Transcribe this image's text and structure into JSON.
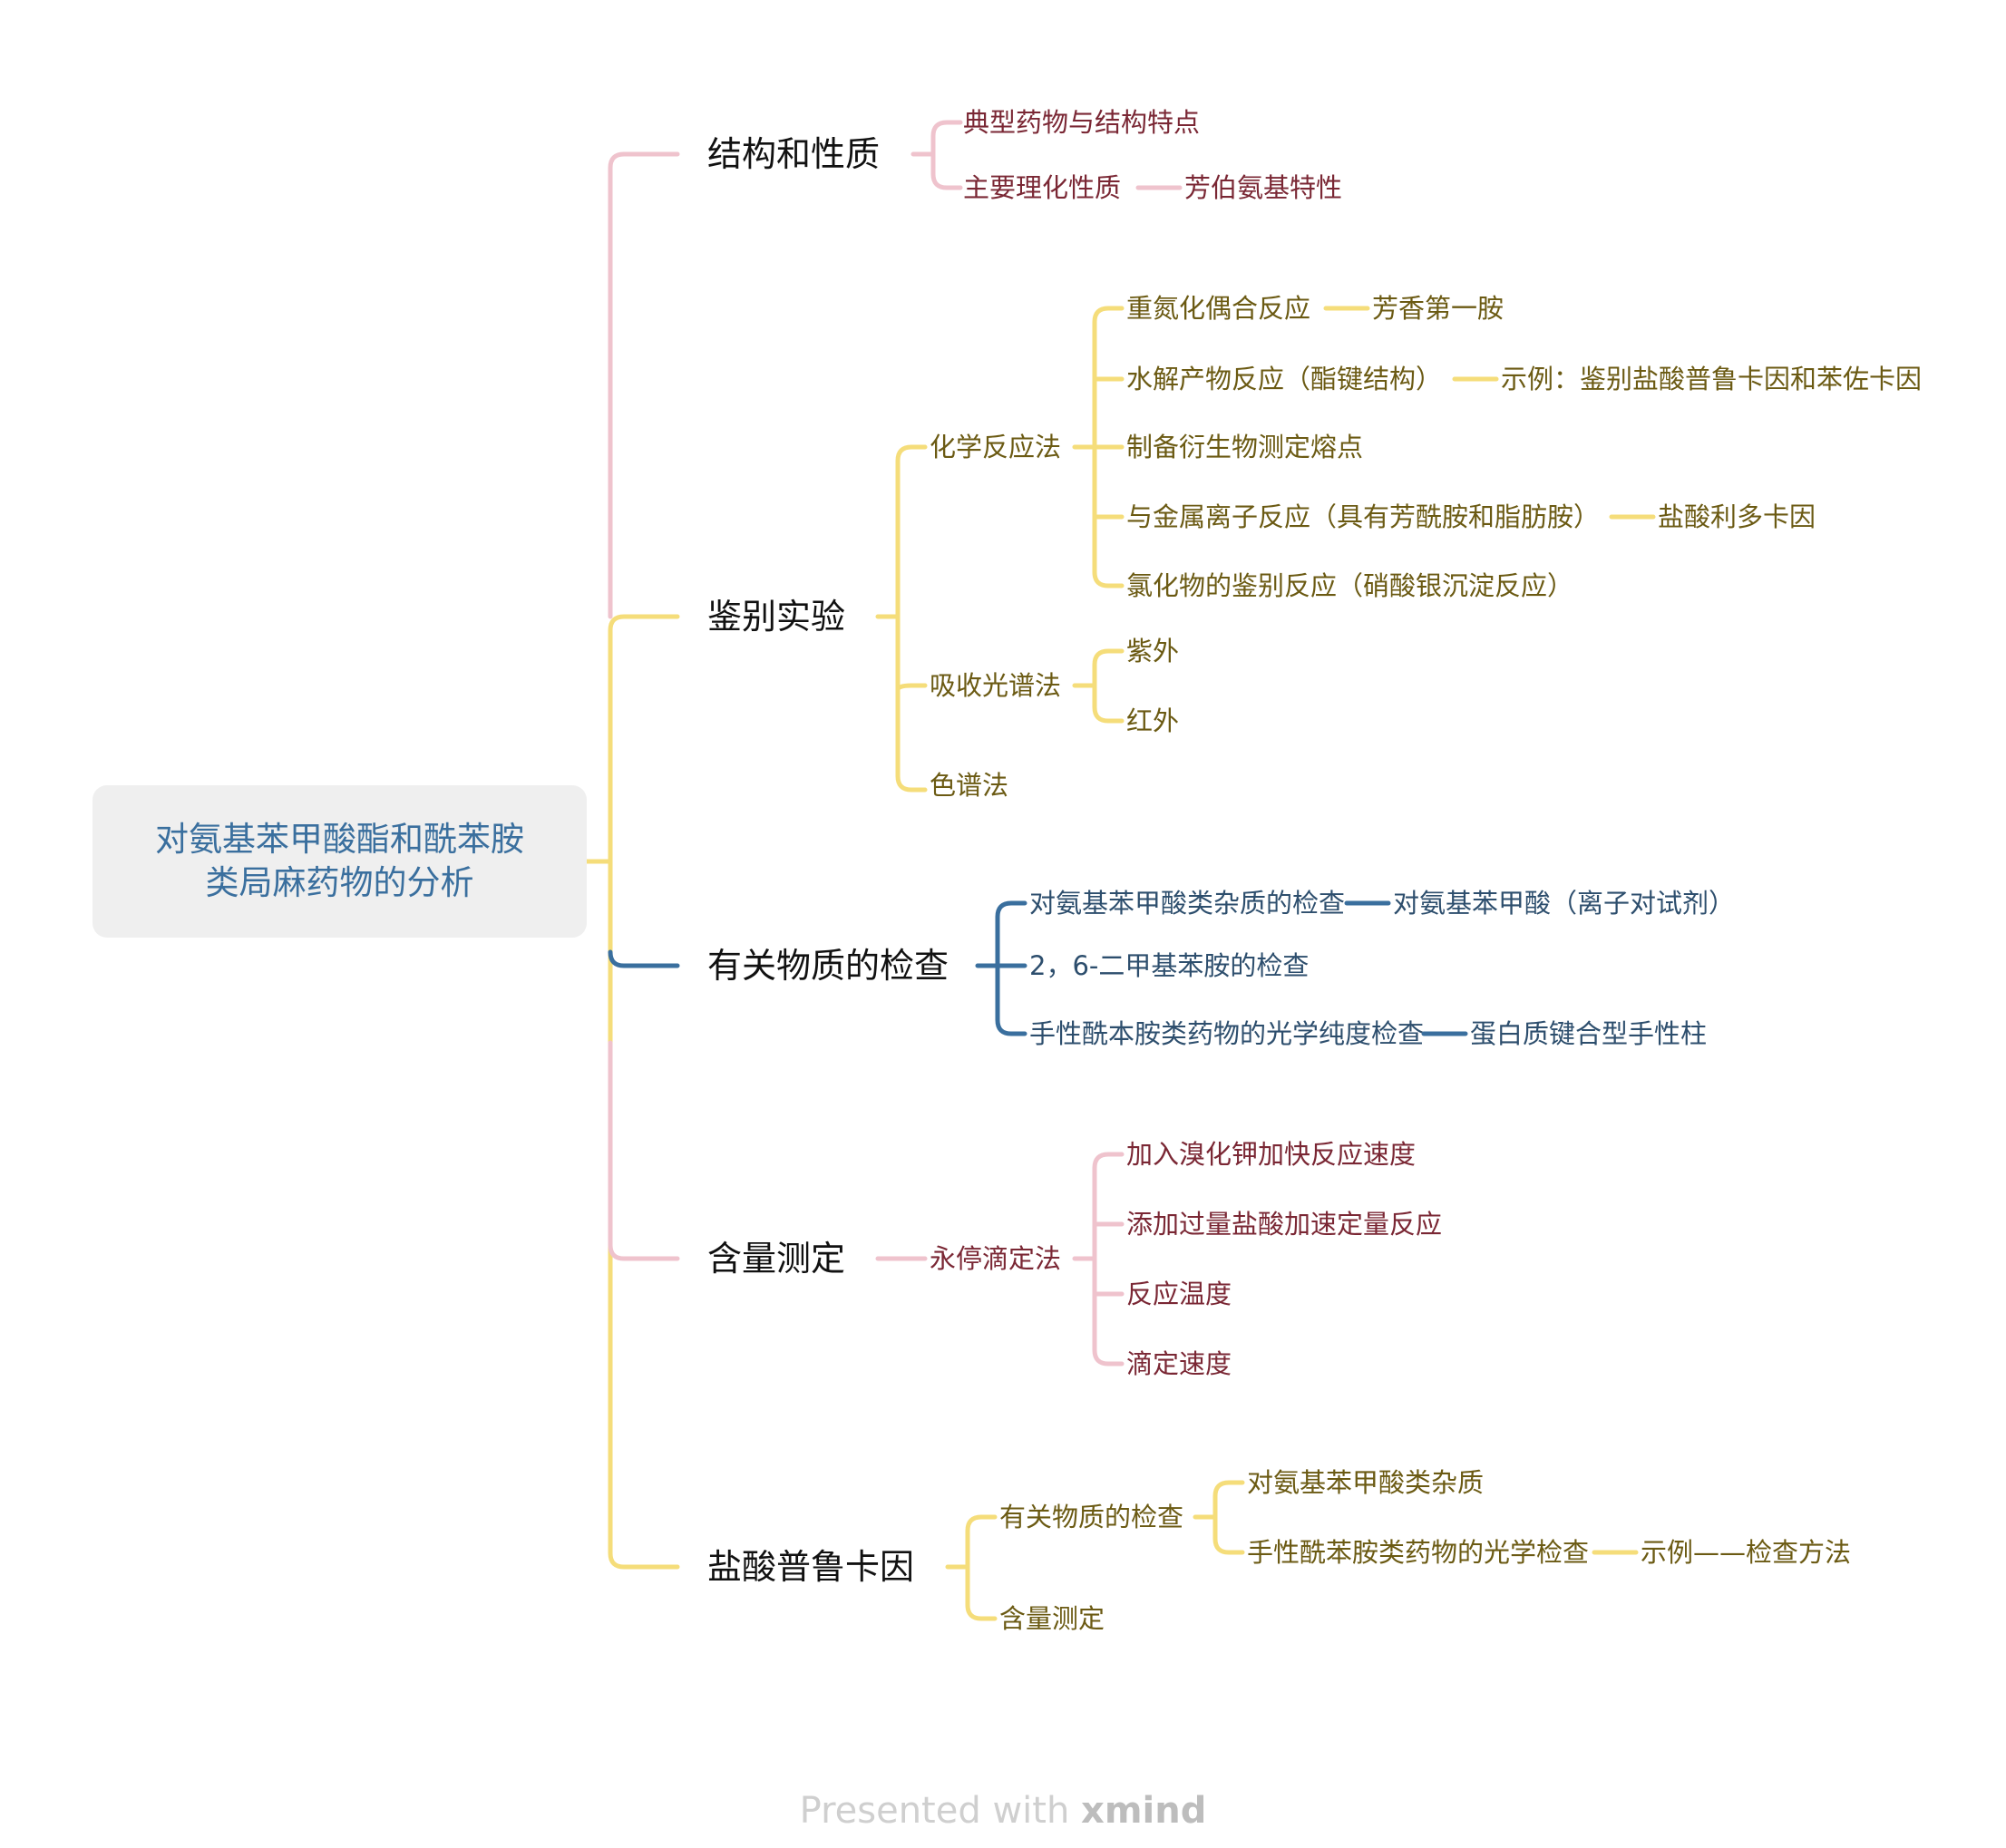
{
  "root": {
    "line1": "对氨基苯甲酸酯和酰苯胺",
    "line2": "类局麻药物的分析"
  },
  "branches": {
    "structure": {
      "label": "结构和性质",
      "children": {
        "typical": "典型药物与结构特点",
        "physchem": "主要理化性质",
        "physchem_note": "芳伯氨基特性"
      }
    },
    "identification": {
      "label": "鉴别实验",
      "chemical": {
        "label": "化学反应法",
        "items": {
          "diazo": "重氮化偶合反应",
          "diazo_note": "芳香第一胺",
          "hydrolysis": "水解产物反应（酯键结构）",
          "hydrolysis_note": "示例：鉴别盐酸普鲁卡因和苯佐卡因",
          "derivative": "制备衍生物测定熔点",
          "metal": "与金属离子反应（具有芳酰胺和脂肪胺）",
          "metal_note": "盐酸利多卡因",
          "chloride": "氯化物的鉴别反应（硝酸银沉淀反应）"
        }
      },
      "spectro": {
        "label": "吸收光谱法",
        "items": {
          "uv": "紫外",
          "ir": "红外"
        }
      },
      "chromatography": {
        "label": "色谱法"
      }
    },
    "impurity": {
      "label": "有关物质的检查",
      "items": {
        "paba": "对氨基苯甲酸类杂质的检查",
        "paba_note": "对氨基苯甲酸（离子对试剂）",
        "dimethyl": "2，6-二甲基苯胺的检查",
        "chiral": "手性酰本胺类药物的光学纯度检查",
        "chiral_note": "蛋白质键合型手性柱"
      }
    },
    "assay": {
      "label": "含量测定",
      "method": {
        "label": "永停滴定法",
        "items": {
          "kbr": "加入溴化钾加快反应速度",
          "hcl": "添加过量盐酸加速定量反应",
          "temp": "反应温度",
          "speed": "滴定速度"
        }
      }
    },
    "procaine": {
      "label": "盐酸普鲁卡因",
      "related": {
        "label": "有关物质的检查",
        "items": {
          "paba": "对氨基苯甲酸类杂质",
          "optical": "手性酰苯胺类药物的光学检查",
          "optical_note": "示例——检查方法"
        }
      },
      "assay": {
        "label": "含量测定"
      }
    }
  },
  "footer": {
    "prefix": "Presented with ",
    "brand": "xmind"
  },
  "colors": {
    "pink": "#efc3cd",
    "yellow": "#f5dd7a",
    "blue": "#3a6f9e"
  }
}
